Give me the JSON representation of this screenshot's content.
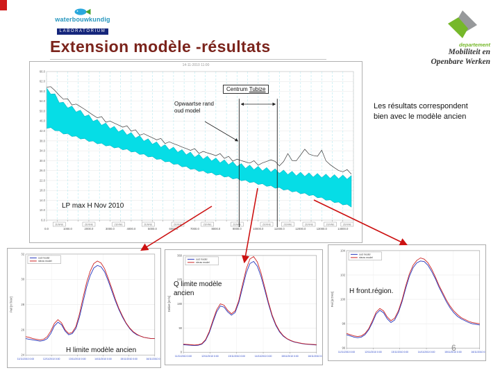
{
  "slide": {
    "title": "Extension modèle -résultats",
    "page_number": "6",
    "note": "Les résultats correspondent\nbien avec le modèle ancien"
  },
  "logo_left": {
    "name": "waterbouwkundig",
    "sub": "LABORATORIUM"
  },
  "logo_right": {
    "dept": "departement",
    "line1": "Mobiliteit en",
    "line2": "Openbare Werken"
  },
  "main_chart": {
    "label_centrum_1": "Centrum ",
    "label_centrum_2": "Tubize",
    "label_opwaartse": "Opwaartse rand\noud model",
    "label_lp": "LP max H Nov 2010"
  },
  "colors": {
    "accent_red": "#cc1111",
    "band_cyan": "#06dde6",
    "title_maroon": "#7b241c",
    "logo_green": "#76b82a",
    "logo_blue": "#2596be",
    "logo_navy": "#15267b",
    "logo_gray": "#97999b",
    "series_blue": "#2233bb",
    "series_red": "#cc2222"
  },
  "chart_data": [
    {
      "id": "longitudinal-profile",
      "type": "area",
      "title": "14-11-2010 11:00",
      "xlim": [
        0,
        14500
      ],
      "ylim": [
        6,
        66
      ],
      "ytick_step": 4,
      "x": [
        0,
        300,
        700,
        1100,
        1700,
        2300,
        3000,
        3800,
        4600,
        5400,
        6200,
        7000,
        7800,
        8600,
        9400,
        10200,
        11000,
        11800,
        12600,
        13400,
        14500
      ],
      "band_top": [
        59.5,
        58,
        54,
        52.5,
        50,
        47,
        44.5,
        42,
        39.5,
        37,
        35,
        33,
        31.5,
        30,
        28.5,
        27.5,
        26.5,
        25.5,
        25,
        24.5,
        24
      ],
      "band_bottom": [
        43,
        42.5,
        41,
        40,
        38.5,
        37,
        35.5,
        34,
        32,
        30,
        28,
        26,
        24.5,
        23,
        21.5,
        20,
        18.5,
        17,
        15.5,
        13.5,
        11
      ],
      "max_x": [
        0,
        300,
        700,
        1100,
        1700,
        2300,
        3000,
        3800,
        4600,
        5400,
        6200,
        7000,
        7800,
        8600,
        9400,
        10200,
        10700,
        11000,
        11400,
        11800,
        12200,
        12600,
        13000,
        13400,
        13800,
        14500
      ],
      "max_y": [
        60.5,
        59,
        55.5,
        53.5,
        51,
        48,
        45.5,
        43,
        40.5,
        38,
        36,
        34,
        32.5,
        31,
        29.5,
        28.5,
        30.5,
        28,
        32,
        29.5,
        34.5,
        31,
        33.5,
        28,
        26,
        25
      ],
      "markers_x": [
        9100,
        10900
      ],
      "stations": [
        600,
        2000,
        3400,
        4800,
        6200,
        7600,
        9000,
        10400,
        11400,
        12400,
        13400,
        14200
      ],
      "station_label": "ZENNE"
    },
    {
      "id": "h-limite",
      "type": "line",
      "caption": "H limite modèle ancien",
      "y_title": "Peil [mTAW]",
      "ylim": [
        24,
        32
      ],
      "y_ticks": [
        24,
        26,
        28,
        30,
        32
      ],
      "x_tick_labels": [
        "11/11/2010 0:00",
        "12/11/2010 0:00",
        "13/11/2010 0:00",
        "14/11/2010 0:00",
        "15/11/2010 0:00",
        "16/11/2010 0:00"
      ],
      "series": [
        {
          "name": "oud model",
          "color": "#2233bb",
          "values": [
            25.3,
            25.25,
            25.2,
            25.15,
            25.1,
            25.15,
            25.3,
            25.7,
            26.3,
            26.6,
            26.4,
            25.9,
            25.6,
            25.7,
            26.1,
            27.0,
            28.2,
            29.4,
            30.3,
            30.9,
            31.1,
            31.0,
            30.6,
            29.9,
            29.1,
            28.3,
            27.6,
            27.0,
            26.5,
            26.1,
            25.8,
            25.6,
            25.5,
            25.4,
            25.35,
            25.3,
            25.3
          ]
        },
        {
          "name": "nieuw model",
          "color": "#cc2222",
          "values": [
            25.45,
            25.4,
            25.3,
            25.25,
            25.2,
            25.25,
            25.45,
            25.9,
            26.5,
            26.8,
            26.55,
            26.0,
            25.7,
            25.8,
            26.25,
            27.25,
            28.55,
            29.75,
            30.65,
            31.25,
            31.45,
            31.3,
            30.85,
            30.1,
            29.3,
            28.45,
            27.7,
            27.1,
            26.55,
            26.15,
            25.85,
            25.65,
            25.5,
            25.4,
            25.35,
            25.3,
            25.3
          ]
        }
      ]
    },
    {
      "id": "q-limite",
      "type": "line",
      "caption": "Q limite modèle ancien",
      "y_title": "Debiet [m³/s]",
      "ylim": [
        0,
        360
      ],
      "y_ticks": [
        0,
        90,
        180,
        270,
        360
      ],
      "x_tick_labels": [
        "11/11/2010 0:00",
        "12/11/2010 0:00",
        "13/11/2010 0:00",
        "14/11/2010 0:00",
        "15/11/2010 0:00",
        "16/11/2010 0:00"
      ],
      "series": [
        {
          "name": "oud model",
          "color": "#2233bb",
          "values": [
            28,
            27,
            26,
            25,
            26,
            30,
            44,
            72,
            112,
            150,
            172,
            168,
            150,
            138,
            148,
            185,
            240,
            295,
            330,
            338,
            320,
            282,
            232,
            180,
            134,
            100,
            76,
            60,
            50,
            43,
            38,
            35,
            32,
            30,
            29,
            28,
            27
          ]
        },
        {
          "name": "nieuw model",
          "color": "#cc2222",
          "values": [
            30,
            29,
            28,
            27,
            28,
            32,
            47,
            77,
            119,
            158,
            180,
            175,
            156,
            143,
            154,
            193,
            252,
            310,
            347,
            356,
            336,
            295,
            242,
            187,
            139,
            104,
            79,
            62,
            51,
            44,
            39,
            36,
            33,
            31,
            30,
            29,
            28
          ]
        }
      ]
    },
    {
      "id": "h-front-region",
      "type": "line",
      "caption": "H front.région.",
      "y_title": "Peil [mTAW]",
      "ylim": [
        96,
        104
      ],
      "y_ticks": [
        96,
        98,
        100,
        102,
        104
      ],
      "x_tick_labels": [
        "11/11/2010 0:00",
        "12/11/2010 0:00",
        "13/11/2010 0:00",
        "14/11/2010 0:00",
        "15/11/2010 0:00",
        "16/11/2010 0:00"
      ],
      "series": [
        {
          "name": "oud model",
          "color": "#2233bb",
          "values": [
            97.1,
            97.0,
            96.9,
            96.85,
            96.9,
            97.1,
            97.5,
            98.1,
            98.8,
            99.1,
            98.9,
            98.4,
            98.1,
            98.3,
            98.9,
            99.8,
            100.9,
            101.9,
            102.6,
            103.0,
            103.15,
            103.1,
            102.8,
            102.3,
            101.7,
            101.0,
            100.4,
            99.8,
            99.3,
            98.9,
            98.6,
            98.4,
            98.25,
            98.1,
            98.0,
            97.95,
            97.9
          ]
        },
        {
          "name": "nieuw model",
          "color": "#cc2222",
          "values": [
            97.2,
            97.1,
            97.0,
            96.95,
            97.0,
            97.2,
            97.6,
            98.25,
            98.95,
            99.25,
            99.05,
            98.55,
            98.25,
            98.45,
            99.05,
            99.95,
            101.1,
            102.1,
            102.8,
            103.2,
            103.4,
            103.3,
            103.0,
            102.5,
            101.85,
            101.15,
            100.55,
            99.95,
            99.45,
            99.05,
            98.75,
            98.5,
            98.35,
            98.2,
            98.1,
            98.05,
            98.0
          ]
        }
      ]
    }
  ]
}
